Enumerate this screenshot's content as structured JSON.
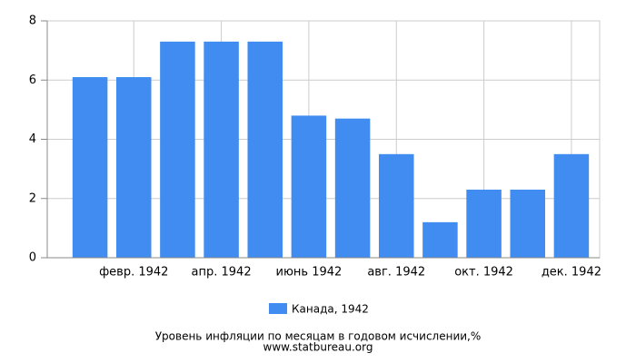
{
  "chart_data": {
    "type": "bar",
    "categories": [
      null,
      "февр. 1942",
      null,
      "апр. 1942",
      null,
      "июнь 1942",
      null,
      "авг. 1942",
      null,
      "окт. 1942",
      null,
      "дек. 1942"
    ],
    "series": [
      {
        "name": "Канада, 1942",
        "color": "#418cf0",
        "values": [
          6.1,
          6.1,
          7.3,
          7.3,
          7.3,
          4.8,
          4.7,
          3.5,
          1.2,
          2.3,
          2.3,
          3.5
        ]
      }
    ],
    "ylim": [
      0,
      8
    ],
    "yticks": [
      0,
      2,
      4,
      6,
      8
    ],
    "grid": true,
    "legend": "bottom",
    "title": "Уровень инфляции по месяцам в годовом исчислении,%",
    "source": "www.statbureau.org"
  }
}
